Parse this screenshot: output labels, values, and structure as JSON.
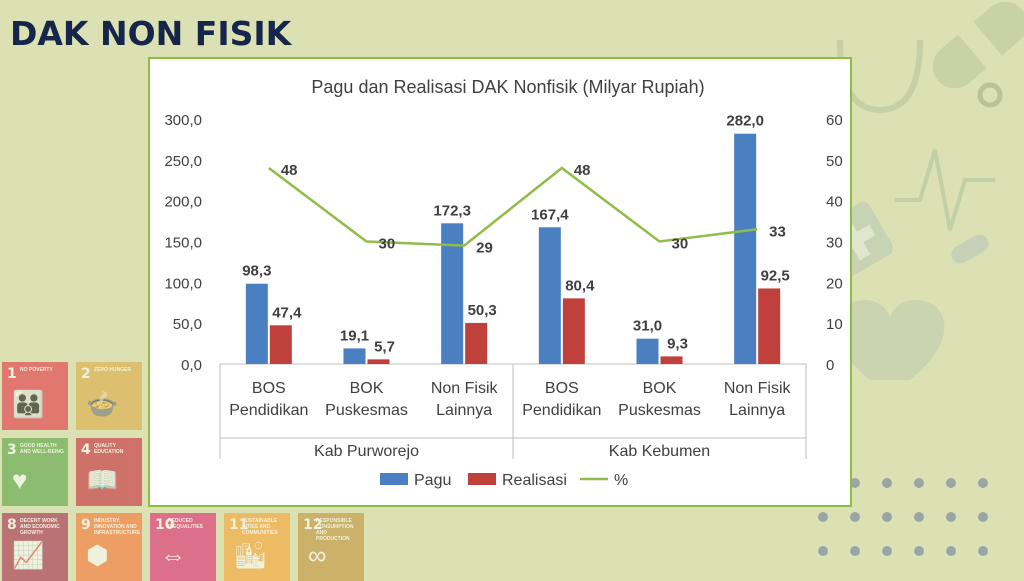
{
  "slide": {
    "title": "DAK NON FISIK"
  },
  "sdg_tiles": [
    {
      "num": "1",
      "label": "NO POVERTY",
      "icon": "family-icon",
      "glyph": "👪",
      "color": "#e5243b"
    },
    {
      "num": "2",
      "label": "ZERO HUNGER",
      "icon": "bowl-icon",
      "glyph": "🍲",
      "color": "#dda63a"
    },
    {
      "num": "3",
      "label": "GOOD HEALTH AND WELL-BEING",
      "icon": "heartbeat-icon",
      "glyph": "♥",
      "color": "#4c9f38"
    },
    {
      "num": "4",
      "label": "QUALITY EDUCATION",
      "icon": "book-icon",
      "glyph": "📖",
      "color": "#c5192d"
    },
    {
      "num": "8",
      "label": "DECENT WORK AND ECONOMIC GROWTH",
      "icon": "growth-chart-icon",
      "glyph": "📈",
      "color": "#a21942"
    },
    {
      "num": "9",
      "label": "INDUSTRY, INNOVATION AND INFRASTRUCTURE",
      "icon": "cubes-icon",
      "glyph": "⬢",
      "color": "#fd6925"
    },
    {
      "num": "10",
      "label": "REDUCED INEQUALITIES",
      "icon": "inequality-icon",
      "glyph": "⇔",
      "color": "#dd1367"
    },
    {
      "num": "11",
      "label": "SUSTAINABLE CITIES AND COMMUNITIES",
      "icon": "city-icon",
      "glyph": "🏙",
      "color": "#fd9d24"
    },
    {
      "num": "12",
      "label": "RESPONSIBLE CONSUMPTION AND PRODUCTION",
      "icon": "infinity-icon",
      "glyph": "∞",
      "color": "#bf8b2e"
    }
  ],
  "chart_data": {
    "type": "bar",
    "title": "Pagu dan Realisasi DAK Nonfisik (Milyar Rupiah)",
    "groups": [
      {
        "label": "Kab Purworejo",
        "categories": [
          "BOS Pendidikan",
          "BOK Puskesmas",
          "Non Fisik Lainnya"
        ]
      },
      {
        "label": "Kab Kebumen",
        "categories": [
          "BOS Pendidikan",
          "BOK Puskesmas",
          "Non Fisik Lainnya"
        ]
      }
    ],
    "categories": [
      [
        "BOS",
        "Pendidikan"
      ],
      [
        "BOK",
        "Puskesmas"
      ],
      [
        "Non Fisik",
        "Lainnya"
      ],
      [
        "BOS",
        "Pendidikan"
      ],
      [
        "BOK",
        "Puskesmas"
      ],
      [
        "Non Fisik",
        "Lainnya"
      ]
    ],
    "series": [
      {
        "name": "Pagu",
        "type": "bar",
        "axis": "left",
        "color": "#4a7fc1",
        "values": [
          98.3,
          19.1,
          172.3,
          167.4,
          31.0,
          282.0
        ],
        "labels": [
          "98,3",
          "19,1",
          "172,3",
          "167,4",
          "31,0",
          "282,0"
        ]
      },
      {
        "name": "Realisasi",
        "type": "bar",
        "axis": "left",
        "color": "#c0413c",
        "values": [
          47.4,
          5.7,
          50.3,
          80.4,
          9.3,
          92.5
        ],
        "labels": [
          "47,4",
          "5,7",
          "50,3",
          "80,4",
          "9,3",
          "92,5"
        ]
      },
      {
        "name": "%",
        "type": "line",
        "axis": "right",
        "color": "#8fbc4b",
        "values": [
          48,
          30,
          29,
          48,
          30,
          33
        ],
        "labels": [
          "48",
          "30",
          "29",
          "48",
          "30",
          "33"
        ]
      }
    ],
    "y_left": {
      "min": 0,
      "max": 300,
      "step": 50,
      "ticks": [
        "0,0",
        "50,0",
        "100,0",
        "150,0",
        "200,0",
        "250,0",
        "300,0"
      ]
    },
    "y_right": {
      "min": 0,
      "max": 60,
      "step": 10,
      "ticks": [
        "0",
        "10",
        "20",
        "30",
        "40",
        "50",
        "60"
      ]
    },
    "legend_position": "bottom",
    "grid": false
  }
}
